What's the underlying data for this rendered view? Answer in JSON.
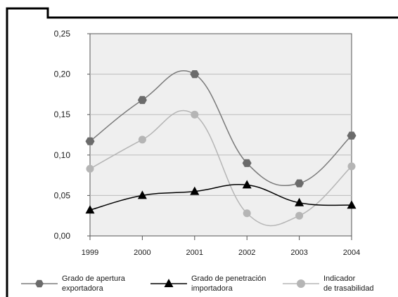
{
  "chart_data": {
    "type": "line",
    "title": "",
    "xlabel": "",
    "ylabel": "",
    "categories": [
      "1999",
      "2000",
      "2001",
      "2002",
      "2003",
      "2004"
    ],
    "y_ticks": [
      "0,00",
      "0,05",
      "0,10",
      "0,15",
      "0,20",
      "0,25"
    ],
    "ylim": [
      0,
      0.25
    ],
    "grid": true,
    "plot_background": "#efefef",
    "legend_position": "bottom",
    "series": [
      {
        "name": "Grado de apertura\nexportadora",
        "marker": "hexagon",
        "color": "#7a7a7a",
        "values": [
          0.117,
          0.168,
          0.2,
          0.09,
          0.065,
          0.124
        ]
      },
      {
        "name": "Grado de penetración\nimportadora",
        "marker": "triangle",
        "color": "#000000",
        "values": [
          0.032,
          0.05,
          0.055,
          0.063,
          0.041,
          0.038
        ]
      },
      {
        "name": "Indicador\nde trasabilidad",
        "marker": "circle",
        "color": "#b5b5b5",
        "values": [
          0.083,
          0.119,
          0.15,
          0.028,
          0.025,
          0.086
        ]
      }
    ]
  }
}
